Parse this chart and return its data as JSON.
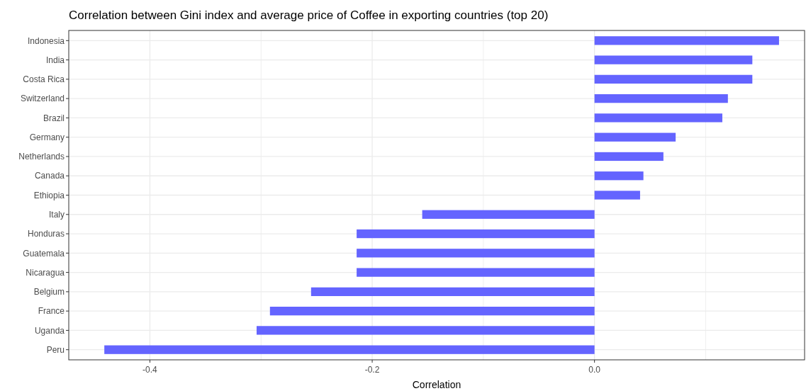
{
  "chart_data": {
    "type": "bar",
    "orientation": "horizontal",
    "title": "Correlation between Gini index and average price of Coffee in exporting countries (top 20)",
    "xlabel": "Correlation",
    "categories": [
      "Indonesia",
      "India",
      "Costa Rica",
      "Switzerland",
      "Brazil",
      "Germany",
      "Netherlands",
      "Canada",
      "Ethiopia",
      "Italy",
      "Honduras",
      "Guatemala",
      "Nicaragua",
      "Belgium",
      "France",
      "Uganda",
      "Peru"
    ],
    "values": [
      0.166,
      0.142,
      0.142,
      0.12,
      0.115,
      0.073,
      0.062,
      0.044,
      0.041,
      -0.155,
      -0.214,
      -0.214,
      -0.214,
      -0.255,
      -0.292,
      -0.304,
      -0.441
    ],
    "color": "#6464ff",
    "xlim": [
      -0.473,
      0.189
    ],
    "xticks": [
      -0.4,
      {
        "value": -0.3,
        "label": null
      },
      -0.2,
      {
        "value": -0.1,
        "label": null
      },
      {
        "value": 0,
        "label": "0.0"
      },
      {
        "value": 0.1,
        "label": null
      }
    ],
    "grid": true
  }
}
